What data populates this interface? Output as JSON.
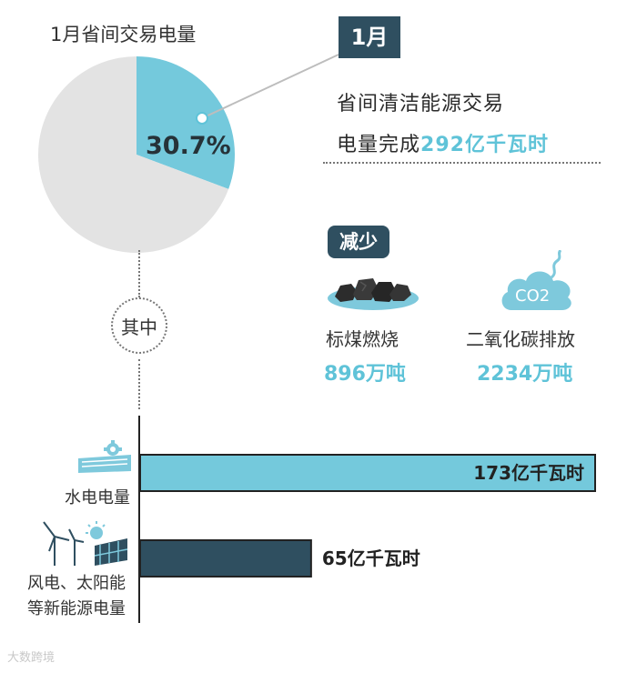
{
  "pie_title": "1月省间交易电量",
  "month_tag": "1月",
  "clean_energy": {
    "line1": "省间清洁能源交易",
    "line2_prefix": "电量完成",
    "amount": "292亿千瓦时"
  },
  "reduce_tag": "减少",
  "coal": {
    "label": "标煤燃烧",
    "value": "896万吨",
    "icon": "coal-icon"
  },
  "co2": {
    "label": "二氧化碳排放",
    "value": "2234万吨",
    "icon": "co2-cloud-icon",
    "icon_text": "CO2"
  },
  "qizhong": "其中",
  "watermark": "大数跨境",
  "colors": {
    "accent": "#74c9dc",
    "dark": "#2f4f60",
    "pie_rest": "#e3e3e3"
  },
  "chart_data": [
    {
      "type": "pie",
      "title": "1月省间交易电量",
      "slices": [
        {
          "label": "30.7%",
          "value": 30.7,
          "color": "#74c9dc"
        },
        {
          "label": "",
          "value": 69.3,
          "color": "#e3e3e3"
        }
      ]
    },
    {
      "type": "bar",
      "orientation": "horizontal",
      "categories": [
        "水电电量",
        "风电、太阳能等新能源电量"
      ],
      "values": [
        173,
        65
      ],
      "value_labels": [
        "173亿千瓦时",
        "65亿千瓦时"
      ],
      "colors": [
        "#74c9dc",
        "#2f4f60"
      ],
      "unit": "亿千瓦时"
    }
  ],
  "bar_categories": {
    "hydro": "水电电量",
    "renew_line1": "风电、太阳能",
    "renew_line2": "等新能源电量"
  }
}
